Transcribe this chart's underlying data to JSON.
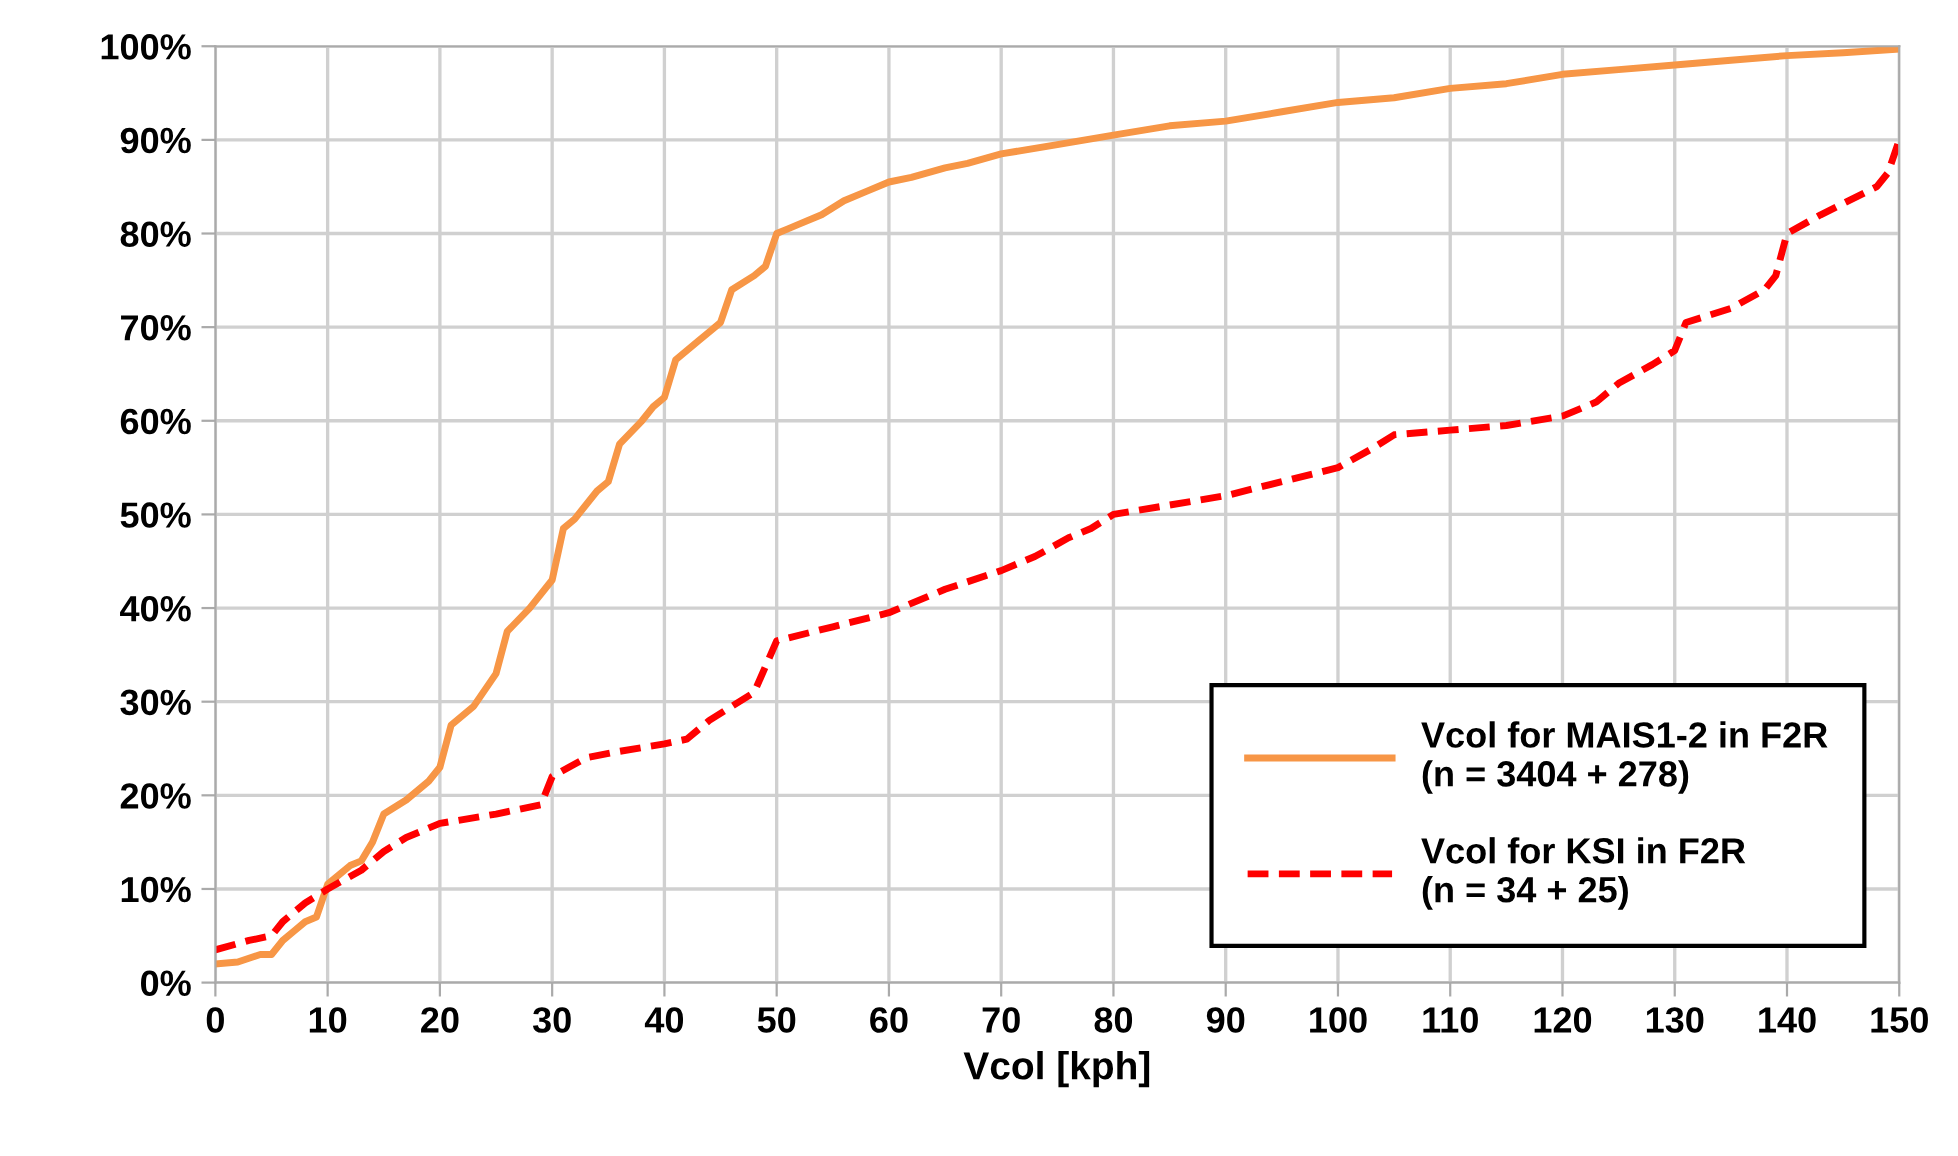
{
  "chart_data": {
    "type": "line",
    "xlabel": "Vcol [kph]",
    "xlim": [
      0,
      150
    ],
    "xticks": [
      0,
      10,
      20,
      30,
      40,
      50,
      60,
      70,
      80,
      90,
      100,
      110,
      120,
      130,
      140,
      150
    ],
    "ylim": [
      0,
      100
    ],
    "yticks": [
      {
        "value": 0,
        "label": "0%"
      },
      {
        "value": 10,
        "label": "10%"
      },
      {
        "value": 20,
        "label": "20%"
      },
      {
        "value": 30,
        "label": "30%"
      },
      {
        "value": 40,
        "label": "40%"
      },
      {
        "value": 50,
        "label": "50%"
      },
      {
        "value": 60,
        "label": "60%"
      },
      {
        "value": 70,
        "label": "70%"
      },
      {
        "value": 80,
        "label": "80%"
      },
      {
        "value": 90,
        "label": "90%"
      },
      {
        "value": 100,
        "label": "100%"
      }
    ],
    "grid": true,
    "legend": "bottom right",
    "marker": "none",
    "series": [
      {
        "name": "Vcol for MAIS1-2 in F2R\n(n = 3404 + 278)",
        "color": "#f79646",
        "line_style": "solid",
        "x": [
          0,
          2,
          4,
          5,
          6,
          7,
          8,
          9,
          10,
          12,
          13,
          14,
          15,
          17,
          19,
          20,
          21,
          23,
          25,
          26,
          28,
          30,
          31,
          32,
          34,
          35,
          36,
          38,
          39,
          40,
          41,
          43,
          44,
          45,
          46,
          48,
          49,
          50,
          51,
          52,
          54,
          56,
          58,
          60,
          62,
          65,
          67,
          70,
          75,
          80,
          85,
          90,
          95,
          100,
          105,
          110,
          115,
          120,
          125,
          130,
          135,
          140,
          145,
          150
        ],
        "values": [
          2,
          2.2,
          3,
          3,
          4.5,
          5.5,
          6.5,
          7,
          10.5,
          12.5,
          13,
          15,
          18,
          19.5,
          21.5,
          23,
          27.5,
          29.5,
          33,
          37.5,
          40,
          43,
          48.5,
          49.5,
          52.5,
          53.5,
          57.5,
          60,
          61.5,
          62.5,
          66.5,
          68.5,
          69.5,
          70.5,
          74,
          75.5,
          76.5,
          80,
          80.5,
          81,
          82,
          83.5,
          84.5,
          85.5,
          86,
          87,
          87.5,
          88.5,
          89.5,
          90.5,
          91.5,
          92,
          93,
          94,
          94.5,
          95.5,
          96,
          97,
          97.5,
          98,
          98.5,
          99,
          99.3,
          99.7
        ]
      },
      {
        "name": "Vcol for KSI in F2R\n(n = 34 + 25)",
        "color": "#ff0000",
        "line_style": "dashed",
        "x": [
          0,
          3,
          5,
          6,
          8,
          10,
          13,
          15,
          17,
          20,
          25,
          29,
          30,
          33,
          36,
          40,
          42,
          44,
          46,
          48,
          50,
          55,
          60,
          65,
          70,
          73,
          76,
          78,
          80,
          90,
          95,
          100,
          103,
          105,
          110,
          115,
          120,
          123,
          125,
          128,
          130,
          131,
          135,
          138,
          139,
          140,
          143,
          148,
          149,
          150
        ],
        "values": [
          3.5,
          4.5,
          5,
          6.5,
          8.5,
          10,
          12,
          14,
          15.5,
          17,
          18,
          19,
          22,
          24,
          24.7,
          25.5,
          26,
          28,
          29.5,
          31,
          36.5,
          38,
          39.5,
          42,
          44,
          45.5,
          47.5,
          48.5,
          50,
          52,
          53.5,
          55,
          57,
          58.5,
          59,
          59.5,
          60.5,
          62,
          64,
          66,
          67.5,
          70.5,
          72,
          74,
          75.5,
          80,
          82,
          85,
          86.5,
          90
        ]
      }
    ]
  }
}
